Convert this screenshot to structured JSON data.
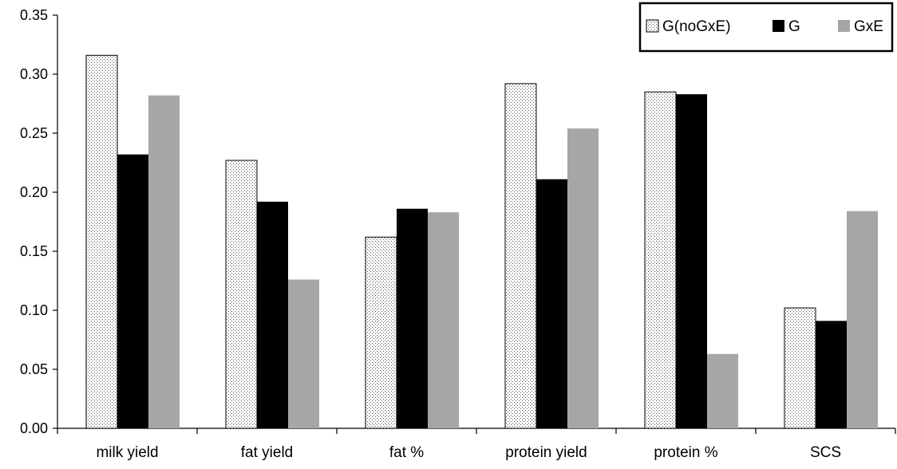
{
  "chart_data": {
    "type": "bar",
    "title": "",
    "xlabel": "",
    "ylabel": "",
    "categories": [
      "milk yield",
      "fat yield",
      "fat %",
      "protein yield",
      "protein %",
      "SCS"
    ],
    "series": [
      {
        "name": "G(noGxE)",
        "values": [
          0.316,
          0.227,
          0.162,
          0.292,
          0.285,
          0.102
        ],
        "color": "#ffffff",
        "pattern": "dotted"
      },
      {
        "name": "G",
        "values": [
          0.232,
          0.192,
          0.186,
          0.211,
          0.283,
          0.091
        ],
        "color": "#000000",
        "pattern": "solid"
      },
      {
        "name": "GxE",
        "values": [
          0.282,
          0.126,
          0.183,
          0.254,
          0.063,
          0.184
        ],
        "color": "#a6a6a6",
        "pattern": "solid"
      }
    ],
    "ylim": [
      0,
      0.35
    ],
    "yticks": [
      "0.00",
      "0.05",
      "0.10",
      "0.15",
      "0.20",
      "0.25",
      "0.30",
      "0.35"
    ],
    "grid": false,
    "legend": {
      "placement": "top-right",
      "boxed": true
    }
  }
}
